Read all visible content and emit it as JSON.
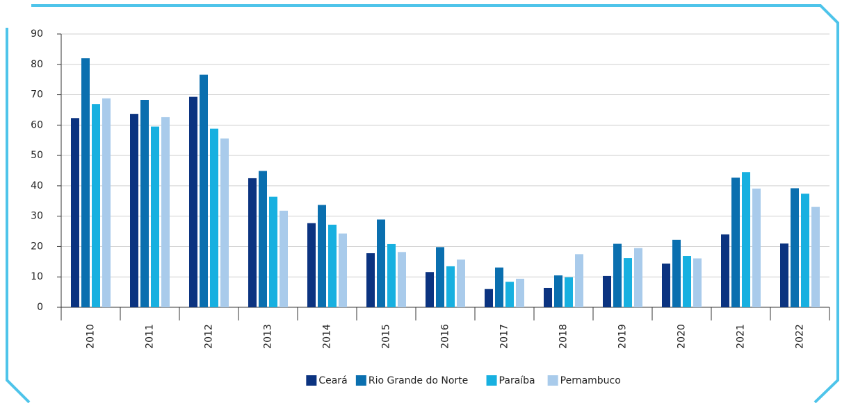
{
  "chart_data": {
    "type": "bar",
    "categories": [
      "2010",
      "2011",
      "2012",
      "2013",
      "2014",
      "2015",
      "2016",
      "2017",
      "2018",
      "2019",
      "2020",
      "2021",
      "2022"
    ],
    "series": [
      {
        "name": "Ceará",
        "color": "#0b3380",
        "values": [
          62.3,
          63.7,
          69.3,
          42.5,
          27.7,
          17.8,
          11.6,
          6.0,
          6.4,
          10.3,
          14.4,
          24.0,
          21.0
        ]
      },
      {
        "name": "Rio Grande do Norte",
        "color": "#0a6faf",
        "values": [
          82.0,
          68.3,
          76.6,
          44.9,
          33.7,
          28.9,
          19.8,
          13.1,
          10.5,
          20.9,
          22.2,
          42.7,
          39.2
        ]
      },
      {
        "name": "Paraíba",
        "color": "#17b0e0",
        "values": [
          66.9,
          59.5,
          58.8,
          36.4,
          27.2,
          20.8,
          13.5,
          8.4,
          9.9,
          16.2,
          16.9,
          44.5,
          37.4
        ]
      },
      {
        "name": "Pernambuco",
        "color": "#a9cbeb",
        "values": [
          68.8,
          62.6,
          55.6,
          31.8,
          24.3,
          18.2,
          15.7,
          9.4,
          17.5,
          19.5,
          16.1,
          39.1,
          33.1
        ]
      }
    ],
    "ylim": [
      0,
      90
    ],
    "yticks": [
      0,
      10,
      20,
      30,
      40,
      50,
      60,
      70,
      80,
      90
    ],
    "grid": true,
    "legend": "bottom"
  }
}
